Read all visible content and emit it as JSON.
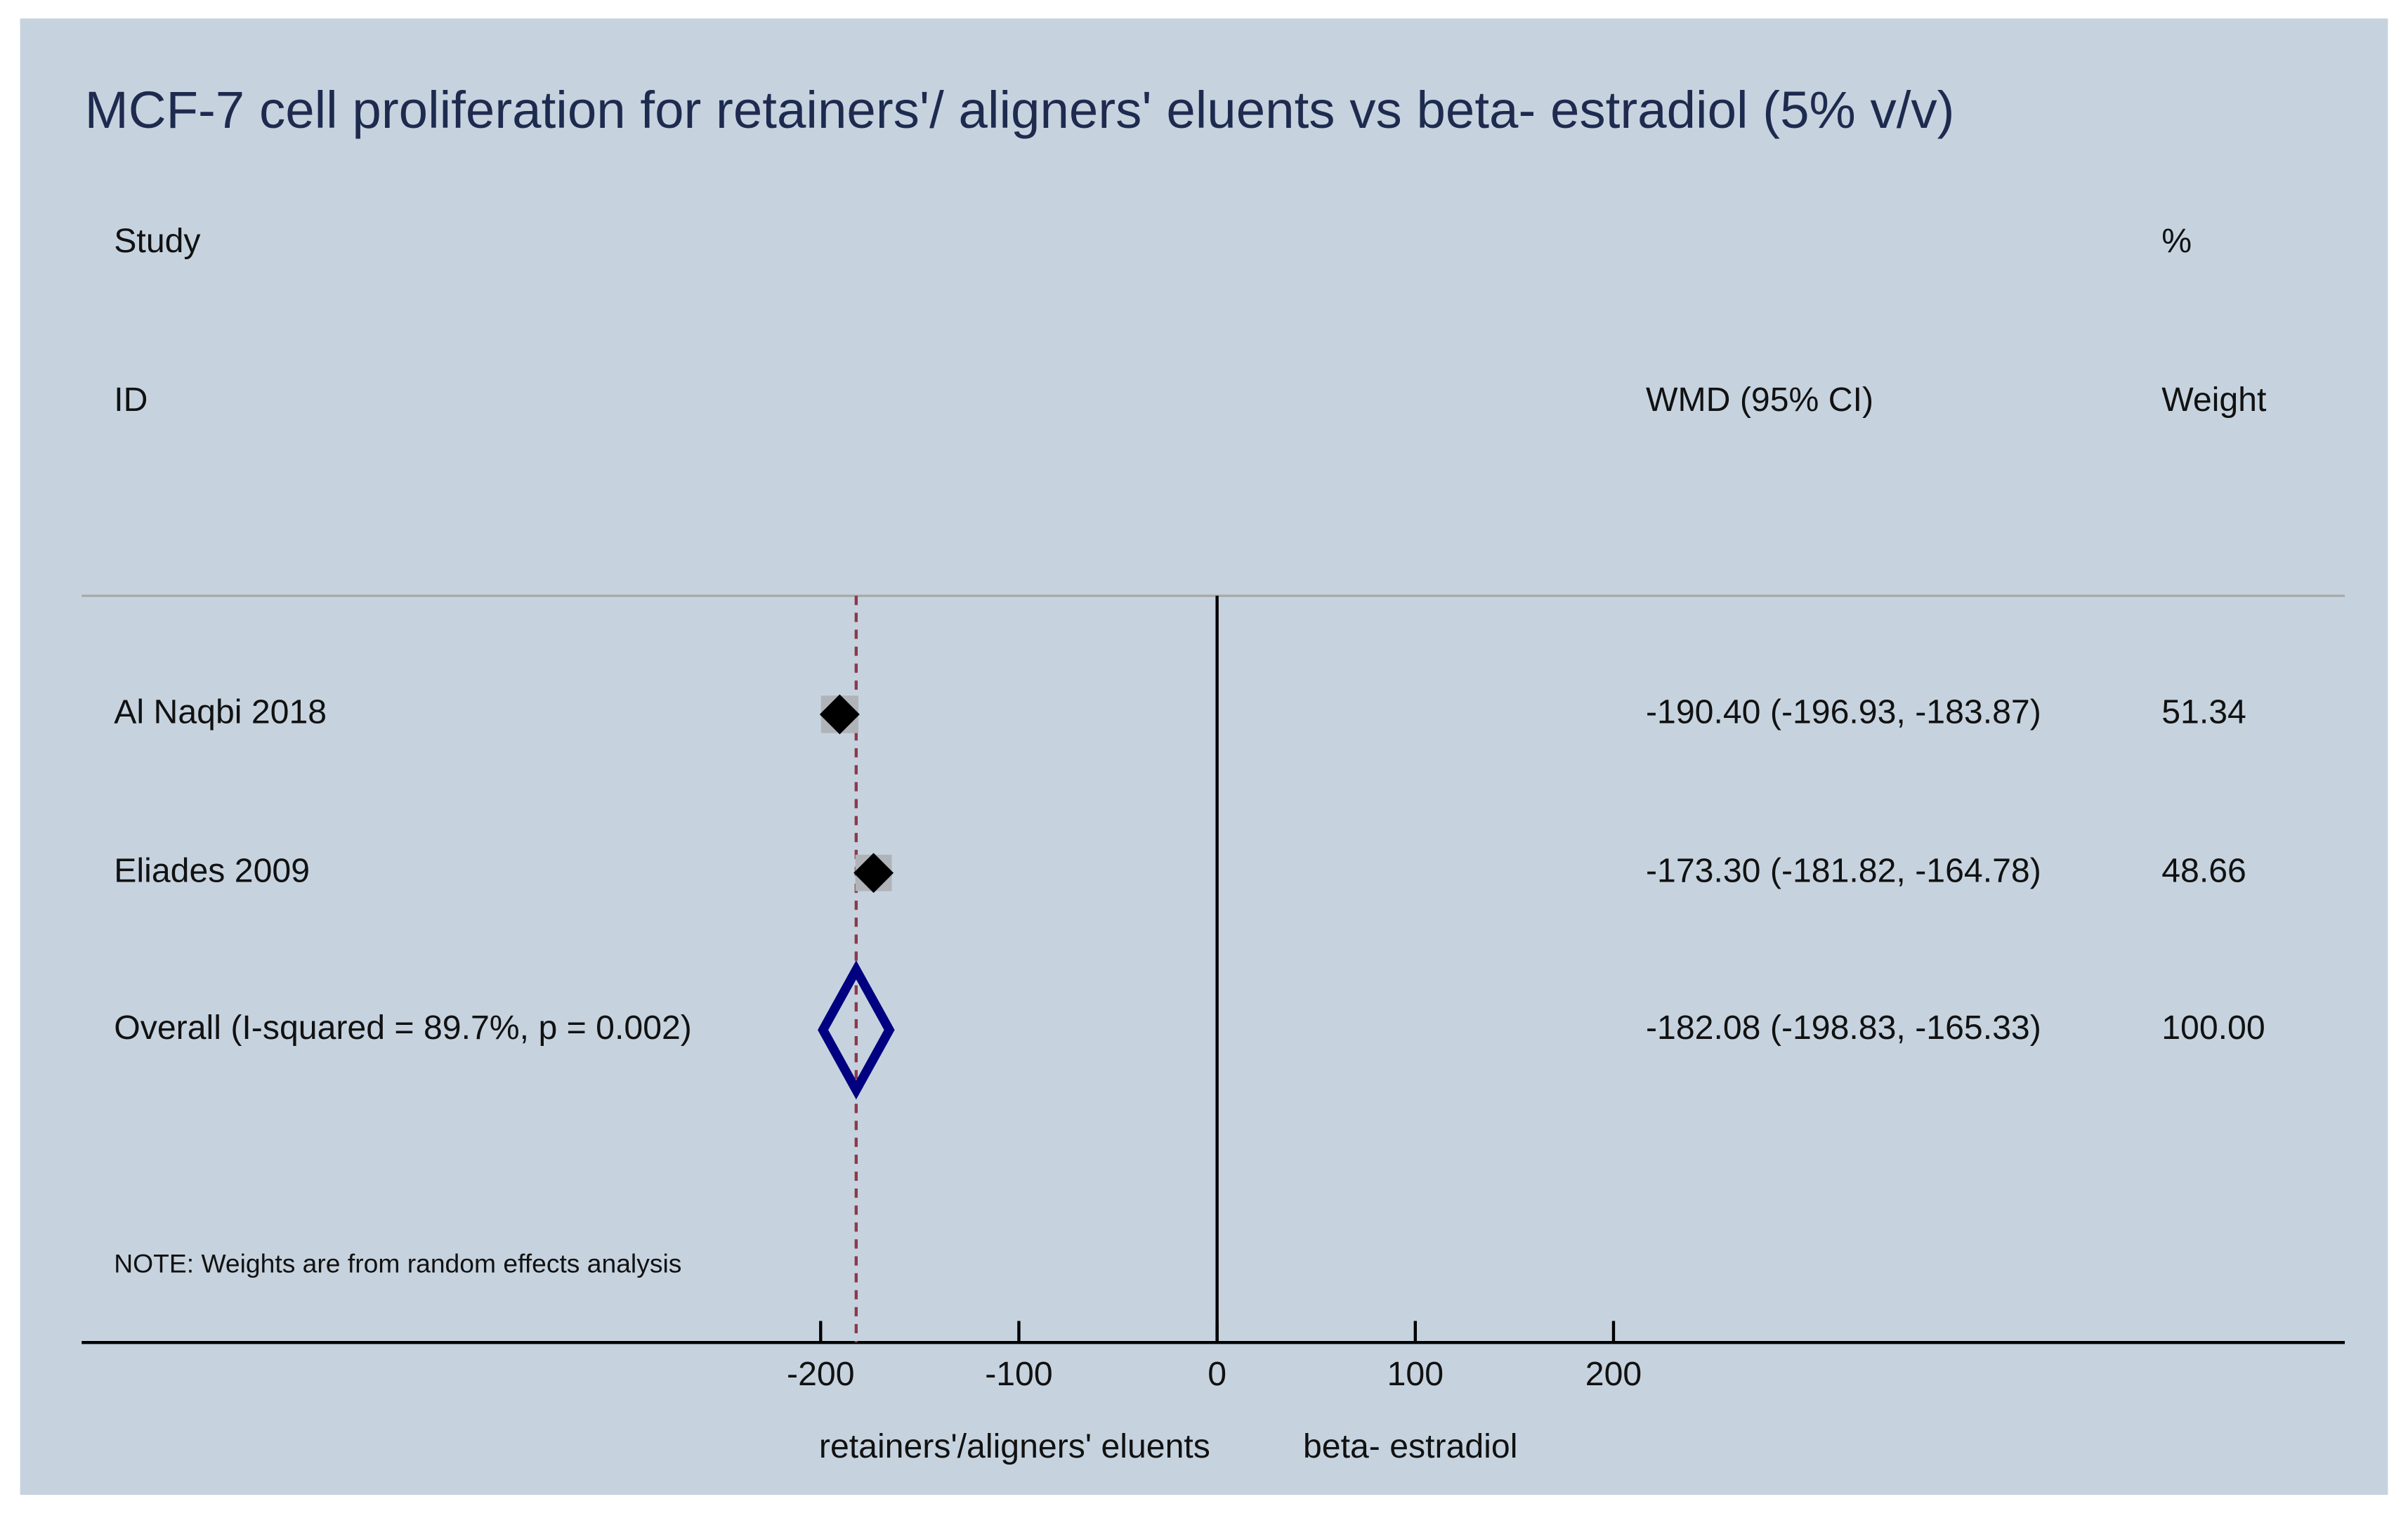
{
  "chart_data": {
    "type": "forest",
    "title": "MCF-7 cell proliferation for retainers'/ aligners' eluents vs beta- estradiol (5% v/v)",
    "headers": {
      "study": "Study",
      "id": "ID",
      "percent": "%",
      "estimate": "WMD (95% CI)",
      "weight": "Weight"
    },
    "studies": [
      {
        "name": "Al Naqbi 2018",
        "wmd": -190.4,
        "ci": [
          -196.93,
          -183.87
        ],
        "label": "-190.40 (-196.93, -183.87)",
        "weight": 51.34
      },
      {
        "name": "Eliades 2009",
        "wmd": -173.3,
        "ci": [
          -181.82,
          -164.78
        ],
        "label": "-173.30 (-181.82, -164.78)",
        "weight": 48.66
      }
    ],
    "overall": {
      "name": "Overall  (I-squared = 89.7%, p = 0.002)",
      "wmd": -182.08,
      "ci": [
        -198.83,
        -165.33
      ],
      "label": "-182.08 (-198.83, -165.33)",
      "weight": 100,
      "weight_label": "100.00"
    },
    "note": "NOTE: Weights are from random effects analysis",
    "xlim": [
      -200,
      200
    ],
    "xticks": [
      -200,
      -100,
      0,
      100,
      200
    ],
    "x_label_left": "retainers'/aligners' eluents",
    "x_label_right": "beta- estradiol",
    "marker_color": "#000000",
    "box_color": "#b0b4b8",
    "overall_color": "#000080",
    "ref_line_color": "#8b3a4a"
  }
}
